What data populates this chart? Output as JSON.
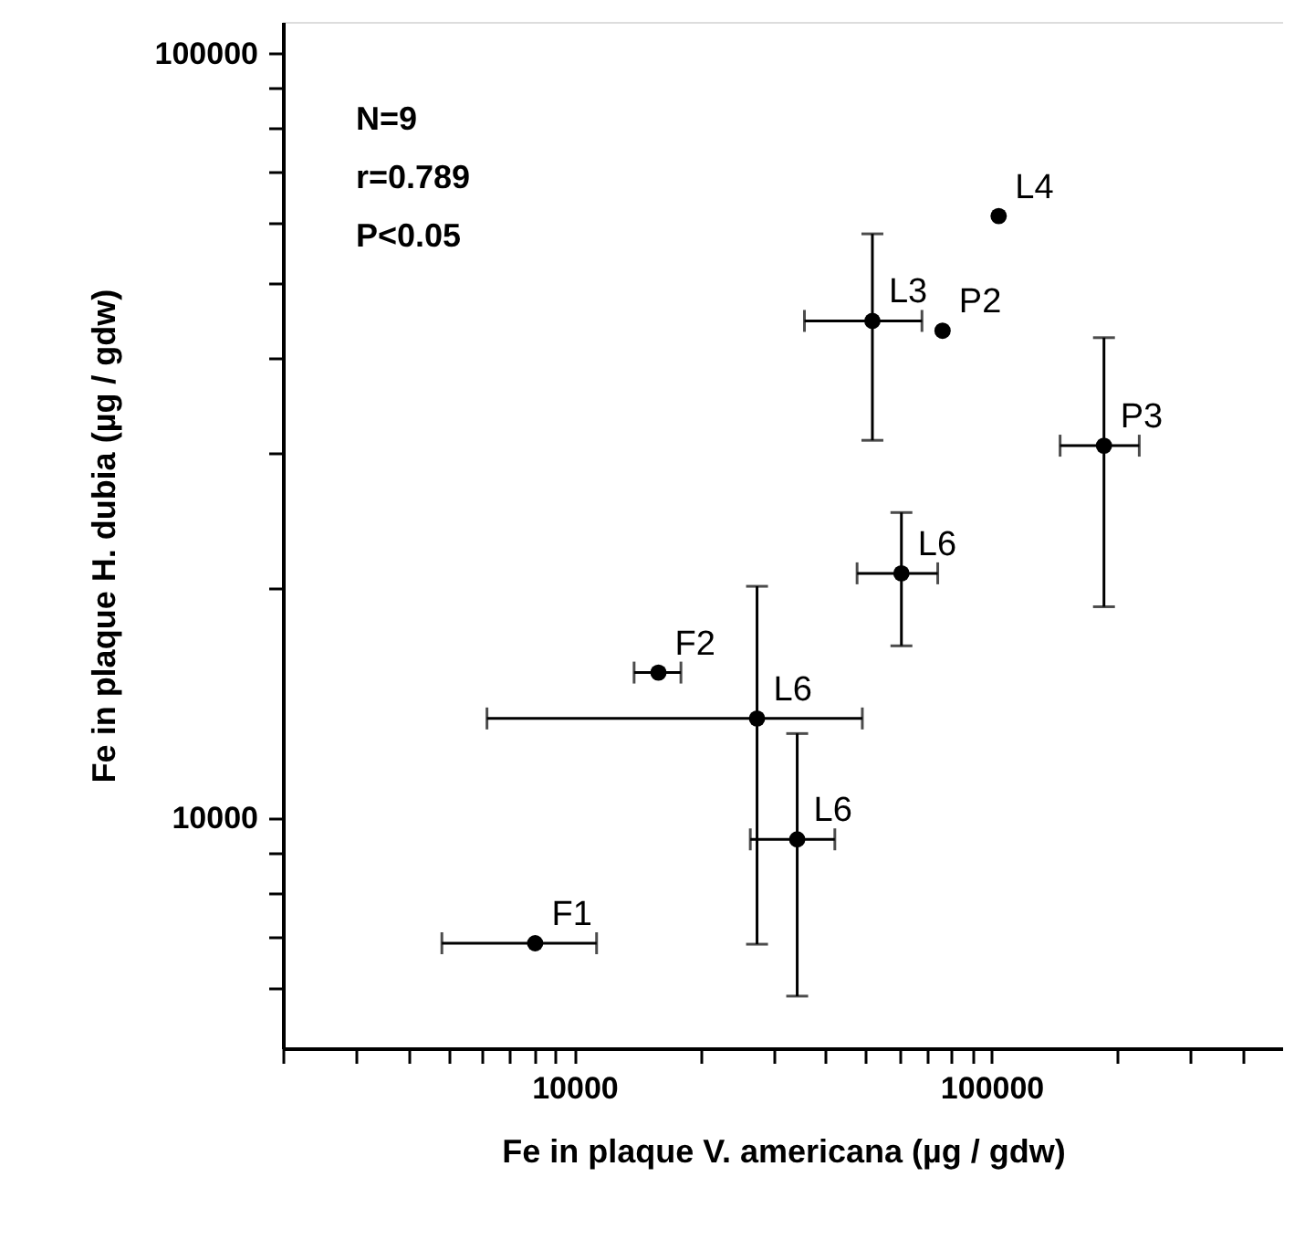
{
  "chart_data": {
    "type": "scatter",
    "xlabel": "Fe in plaque V. americana  (µg / gdw)",
    "ylabel": "Fe in plaque H. dubia  (µg / gdw)",
    "x": [
      104000,
      76300,
      51800,
      186000,
      60800,
      15900,
      27400,
      34200,
      8050
    ],
    "values": [
      61300,
      43400,
      44700,
      30700,
      20900,
      15500,
      13500,
      9380,
      6860
    ],
    "xerrors": [
      null,
      null,
      [
        35600,
        68100
      ],
      [
        146000,
        226000
      ],
      [
        47600,
        74300
      ],
      [
        13900,
        18000
      ],
      [
        6170,
        49000
      ],
      [
        26400,
        42100
      ],
      [
        4810,
        11300
      ]
    ],
    "errors": [
      null,
      null,
      [
        31200,
        58100
      ],
      [
        18900,
        42500
      ],
      [
        16800,
        25100
      ],
      null,
      [
        6840,
        20100
      ],
      [
        5850,
        12900
      ],
      null
    ],
    "color": "#000000",
    "marker": "circle",
    "log": "xy",
    "grid": false,
    "xlim": [
      2000,
      500000
    ],
    "ylim": [
      5000,
      110000
    ],
    "xticks": [
      {
        "value": 2000,
        "label": null
      },
      {
        "value": 3000,
        "label": null
      },
      {
        "value": 4000,
        "label": null
      },
      {
        "value": 5000,
        "label": null
      },
      {
        "value": 6000,
        "label": null
      },
      {
        "value": 7000,
        "label": null
      },
      {
        "value": 8000,
        "label": null
      },
      {
        "value": 9000,
        "label": null
      },
      10000,
      {
        "value": 20000,
        "label": null
      },
      {
        "value": 30000,
        "label": null
      },
      {
        "value": 40000,
        "label": null
      },
      {
        "value": 50000,
        "label": null
      },
      {
        "value": 60000,
        "label": null
      },
      {
        "value": 70000,
        "label": null
      },
      {
        "value": 80000,
        "label": null
      },
      {
        "value": 90000,
        "label": null
      },
      100000,
      {
        "value": 200000,
        "label": null
      },
      {
        "value": 300000,
        "label": null
      },
      {
        "value": 400000,
        "label": null
      }
    ],
    "yticks": [
      {
        "value": 6000,
        "label": null
      },
      {
        "value": 7000,
        "label": null
      },
      {
        "value": 8000,
        "label": null
      },
      {
        "value": 9000,
        "label": null
      },
      10000,
      {
        "value": 20000,
        "label": null
      },
      {
        "value": 30000,
        "label": null
      },
      {
        "value": 40000,
        "label": null
      },
      {
        "value": 50000,
        "label": null
      },
      {
        "value": 60000,
        "label": null
      },
      {
        "value": 70000,
        "label": null
      },
      {
        "value": 80000,
        "label": null
      },
      {
        "value": 90000,
        "label": null
      },
      100000
    ],
    "annotations": [
      "N=9",
      "r=0.789",
      "P<0.05",
      {
        "text": "L4",
        "x": 104000,
        "y": 61300
      },
      {
        "text": "P2",
        "x": 76300,
        "y": 43400
      },
      {
        "text": "L3",
        "x": 51800,
        "y": 44700
      },
      {
        "text": "P3",
        "x": 186000,
        "y": 30700
      },
      {
        "text": "L6",
        "x": 60800,
        "y": 20900
      },
      {
        "text": "F2",
        "x": 15900,
        "y": 15500
      },
      {
        "text": "L6",
        "x": 27400,
        "y": 13500
      },
      {
        "text": "L6",
        "x": 34200,
        "y": 9380
      },
      {
        "text": "F1",
        "x": 8050,
        "y": 6860
      }
    ]
  }
}
